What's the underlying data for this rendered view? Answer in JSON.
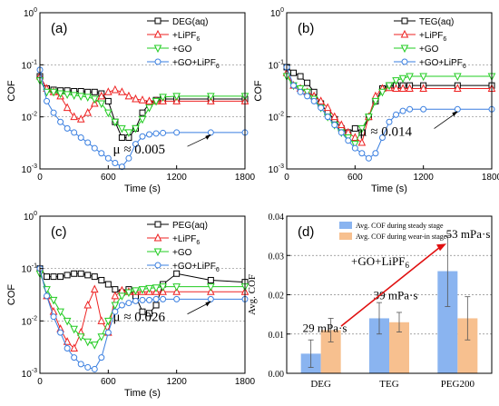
{
  "colors": {
    "black": "#000000",
    "red": "#ee2222",
    "green": "#22cc22",
    "blue": "#3a7fe0",
    "bar_blue": "#8ab4f0",
    "bar_orange": "#f7c08f",
    "arrow": "#e01010"
  },
  "chart_data": [
    {
      "panel": "(a)",
      "type": "line",
      "xlabel": "Time (s)",
      "ylabel": "COF",
      "xlim": [
        0,
        1800
      ],
      "ylim_log": [
        0.001,
        1
      ],
      "xticks": [
        "0",
        "600",
        "1200",
        "1800"
      ],
      "yticks": [
        "10^-3",
        "10^-2",
        "10^-1",
        "10^0"
      ],
      "y_scale": "log",
      "annotation": {
        "text": "μ ≈ 0.005",
        "value": 0.005
      },
      "series": [
        {
          "name": "DEG(aq)",
          "color": "black",
          "marker": "square",
          "x": [
            0,
            60,
            120,
            180,
            240,
            300,
            360,
            420,
            480,
            540,
            600,
            660,
            720,
            780,
            840,
            900,
            960,
            1020,
            1080,
            1200,
            1500,
            1800
          ],
          "y": [
            0.06,
            0.035,
            0.033,
            0.032,
            0.032,
            0.031,
            0.031,
            0.03,
            0.03,
            0.028,
            0.02,
            0.008,
            0.004,
            0.004,
            0.006,
            0.012,
            0.018,
            0.021,
            0.022,
            0.022,
            0.022,
            0.022
          ]
        },
        {
          "name": "+LiPF6",
          "color": "red",
          "marker": "triangle-up",
          "x": [
            0,
            60,
            120,
            180,
            240,
            300,
            360,
            420,
            480,
            540,
            600,
            660,
            720,
            780,
            840,
            900,
            960,
            1020,
            1080,
            1200,
            1500,
            1800
          ],
          "y": [
            0.06,
            0.035,
            0.03,
            0.025,
            0.015,
            0.01,
            0.009,
            0.012,
            0.018,
            0.025,
            0.03,
            0.033,
            0.03,
            0.025,
            0.022,
            0.021,
            0.02,
            0.02,
            0.02,
            0.02,
            0.02,
            0.02
          ]
        },
        {
          "name": "+GO",
          "color": "green",
          "marker": "triangle-down",
          "x": [
            0,
            60,
            120,
            180,
            240,
            300,
            360,
            420,
            480,
            540,
            600,
            660,
            720,
            780,
            840,
            900,
            960,
            1020,
            1080,
            1200,
            1500,
            1800
          ],
          "y": [
            0.05,
            0.03,
            0.03,
            0.028,
            0.027,
            0.026,
            0.025,
            0.024,
            0.022,
            0.018,
            0.012,
            0.008,
            0.006,
            0.005,
            0.006,
            0.009,
            0.015,
            0.02,
            0.024,
            0.025,
            0.025,
            0.025
          ]
        },
        {
          "name": "+GO+LiPF6",
          "color": "blue",
          "marker": "circle",
          "x": [
            0,
            60,
            120,
            180,
            240,
            300,
            360,
            420,
            480,
            540,
            600,
            660,
            720,
            780,
            840,
            900,
            960,
            1020,
            1080,
            1200,
            1500,
            1800
          ],
          "y": [
            0.08,
            0.02,
            0.012,
            0.008,
            0.006,
            0.005,
            0.004,
            0.0032,
            0.0025,
            0.002,
            0.0016,
            0.0013,
            0.0011,
            0.0016,
            0.003,
            0.0042,
            0.0046,
            0.0048,
            0.0049,
            0.005,
            0.005,
            0.005
          ]
        }
      ]
    },
    {
      "panel": "(b)",
      "type": "line",
      "xlabel": "Time (s)",
      "ylabel": "COF",
      "xlim": [
        0,
        1800
      ],
      "ylim_log": [
        0.001,
        1
      ],
      "xticks": [
        "0",
        "600",
        "1200",
        "1800"
      ],
      "yticks": [
        "10^-3",
        "10^-2",
        "10^-1",
        "10^0"
      ],
      "y_scale": "log",
      "annotation": {
        "text": "μ ≈ 0.014",
        "value": 0.014
      },
      "series": [
        {
          "name": "TEG(aq)",
          "color": "black",
          "marker": "square",
          "x": [
            0,
            60,
            120,
            180,
            240,
            300,
            360,
            420,
            480,
            540,
            600,
            660,
            720,
            780,
            840,
            900,
            960,
            1020,
            1080,
            1200,
            1500,
            1800
          ],
          "y": [
            0.09,
            0.07,
            0.06,
            0.045,
            0.03,
            0.018,
            0.012,
            0.009,
            0.006,
            0.005,
            0.006,
            0.005,
            0.01,
            0.02,
            0.035,
            0.04,
            0.04,
            0.04,
            0.04,
            0.04,
            0.04,
            0.04
          ]
        },
        {
          "name": "+LiPF6",
          "color": "red",
          "marker": "triangle-up",
          "x": [
            0,
            60,
            120,
            180,
            240,
            300,
            360,
            420,
            480,
            540,
            600,
            660,
            720,
            780,
            840,
            900,
            960,
            1020,
            1080,
            1200,
            1500,
            1800
          ],
          "y": [
            0.07,
            0.04,
            0.035,
            0.03,
            0.025,
            0.02,
            0.015,
            0.01,
            0.007,
            0.005,
            0.004,
            0.0032,
            0.01,
            0.025,
            0.035,
            0.036,
            0.035,
            0.035,
            0.035,
            0.035,
            0.035,
            0.035
          ]
        },
        {
          "name": "+GO",
          "color": "green",
          "marker": "triangle-down",
          "x": [
            0,
            60,
            120,
            180,
            240,
            300,
            360,
            420,
            480,
            540,
            600,
            660,
            720,
            780,
            840,
            900,
            960,
            1020,
            1080,
            1200,
            1500,
            1800
          ],
          "y": [
            0.06,
            0.04,
            0.035,
            0.03,
            0.022,
            0.015,
            0.01,
            0.007,
            0.005,
            0.004,
            0.003,
            0.006,
            0.01,
            0.02,
            0.03,
            0.04,
            0.05,
            0.055,
            0.06,
            0.06,
            0.06,
            0.06
          ]
        },
        {
          "name": "+GO+LiPF6",
          "color": "blue",
          "marker": "circle",
          "x": [
            0,
            60,
            120,
            180,
            240,
            300,
            360,
            420,
            480,
            540,
            600,
            660,
            720,
            780,
            840,
            900,
            960,
            1020,
            1080,
            1200,
            1500,
            1800
          ],
          "y": [
            0.09,
            0.04,
            0.03,
            0.025,
            0.02,
            0.015,
            0.01,
            0.007,
            0.005,
            0.0035,
            0.0025,
            0.002,
            0.0016,
            0.002,
            0.004,
            0.008,
            0.011,
            0.013,
            0.014,
            0.014,
            0.014,
            0.014
          ]
        }
      ]
    },
    {
      "panel": "(c)",
      "type": "line",
      "xlabel": "Time (s)",
      "ylabel": "COF",
      "xlim": [
        0,
        1800
      ],
      "ylim_log": [
        0.001,
        1
      ],
      "xticks": [
        "0",
        "600",
        "1200",
        "1800"
      ],
      "yticks": [
        "10^-3",
        "10^-2",
        "10^-1",
        "10^0"
      ],
      "y_scale": "log",
      "annotation": {
        "text": "μ ≈ 0.026",
        "value": 0.026
      },
      "series": [
        {
          "name": "PEG(aq)",
          "color": "black",
          "marker": "square",
          "x": [
            0,
            60,
            120,
            180,
            240,
            300,
            360,
            420,
            480,
            540,
            600,
            660,
            720,
            780,
            840,
            900,
            960,
            1020,
            1080,
            1200,
            1500,
            1800
          ],
          "y": [
            0.1,
            0.07,
            0.07,
            0.07,
            0.075,
            0.08,
            0.08,
            0.075,
            0.07,
            0.06,
            0.05,
            0.04,
            0.035,
            0.04,
            0.03,
            0.015,
            0.014,
            0.02,
            0.05,
            0.08,
            0.06,
            0.055
          ]
        },
        {
          "name": "+LiPF6",
          "color": "red",
          "marker": "triangle-up",
          "x": [
            0,
            60,
            120,
            180,
            240,
            300,
            360,
            420,
            480,
            540,
            600,
            660,
            720,
            780,
            840,
            900,
            960,
            1020,
            1080,
            1200,
            1500,
            1800
          ],
          "y": [
            0.1,
            0.03,
            0.015,
            0.007,
            0.004,
            0.003,
            0.006,
            0.02,
            0.04,
            0.01,
            0.006,
            0.03,
            0.038,
            0.036,
            0.036,
            0.036,
            0.036,
            0.036,
            0.036,
            0.036,
            0.036,
            0.036
          ]
        },
        {
          "name": "+GO",
          "color": "green",
          "marker": "triangle-down",
          "x": [
            0,
            60,
            120,
            180,
            240,
            300,
            360,
            420,
            480,
            540,
            600,
            660,
            720,
            780,
            840,
            900,
            960,
            1020,
            1080,
            1200,
            1500,
            1800
          ],
          "y": [
            0.08,
            0.04,
            0.025,
            0.015,
            0.01,
            0.007,
            0.005,
            0.004,
            0.0035,
            0.005,
            0.01,
            0.02,
            0.03,
            0.035,
            0.038,
            0.04,
            0.042,
            0.043,
            0.045,
            0.045,
            0.045,
            0.045
          ]
        },
        {
          "name": "+GO+LiPF6",
          "color": "blue",
          "marker": "circle",
          "x": [
            0,
            60,
            120,
            180,
            240,
            300,
            360,
            420,
            480,
            540,
            600,
            660,
            720,
            780,
            840,
            900,
            960,
            1020,
            1080,
            1200,
            1500,
            1800
          ],
          "y": [
            0.1,
            0.03,
            0.012,
            0.006,
            0.003,
            0.002,
            0.0015,
            0.0013,
            0.0012,
            0.002,
            0.006,
            0.015,
            0.02,
            0.022,
            0.024,
            0.025,
            0.025,
            0.026,
            0.026,
            0.026,
            0.026,
            0.026
          ]
        }
      ]
    },
    {
      "panel": "(d)",
      "type": "bar",
      "ylabel": "Avg. COF",
      "categories": [
        "DEG",
        "TEG",
        "PEG200"
      ],
      "ylim": [
        0,
        0.04
      ],
      "yticks": [
        "0.00",
        "0.01",
        "0.02",
        "0.03",
        "0.04"
      ],
      "series": [
        {
          "name": "Avg. COF during steady stage",
          "color": "bar_blue",
          "values": [
            0.005,
            0.014,
            0.026
          ],
          "errors": [
            0.0035,
            0.004,
            0.009
          ]
        },
        {
          "name": "Avg. COF during wear-in stage",
          "color": "bar_orange",
          "values": [
            0.011,
            0.013,
            0.014
          ],
          "errors": [
            0.003,
            0.0025,
            0.0055
          ]
        }
      ],
      "annotations": {
        "header": "+GO+LiPF6",
        "viscosity": [
          "29 mPa·s",
          "39 mPa·s",
          "53 mPa·s"
        ]
      }
    }
  ]
}
